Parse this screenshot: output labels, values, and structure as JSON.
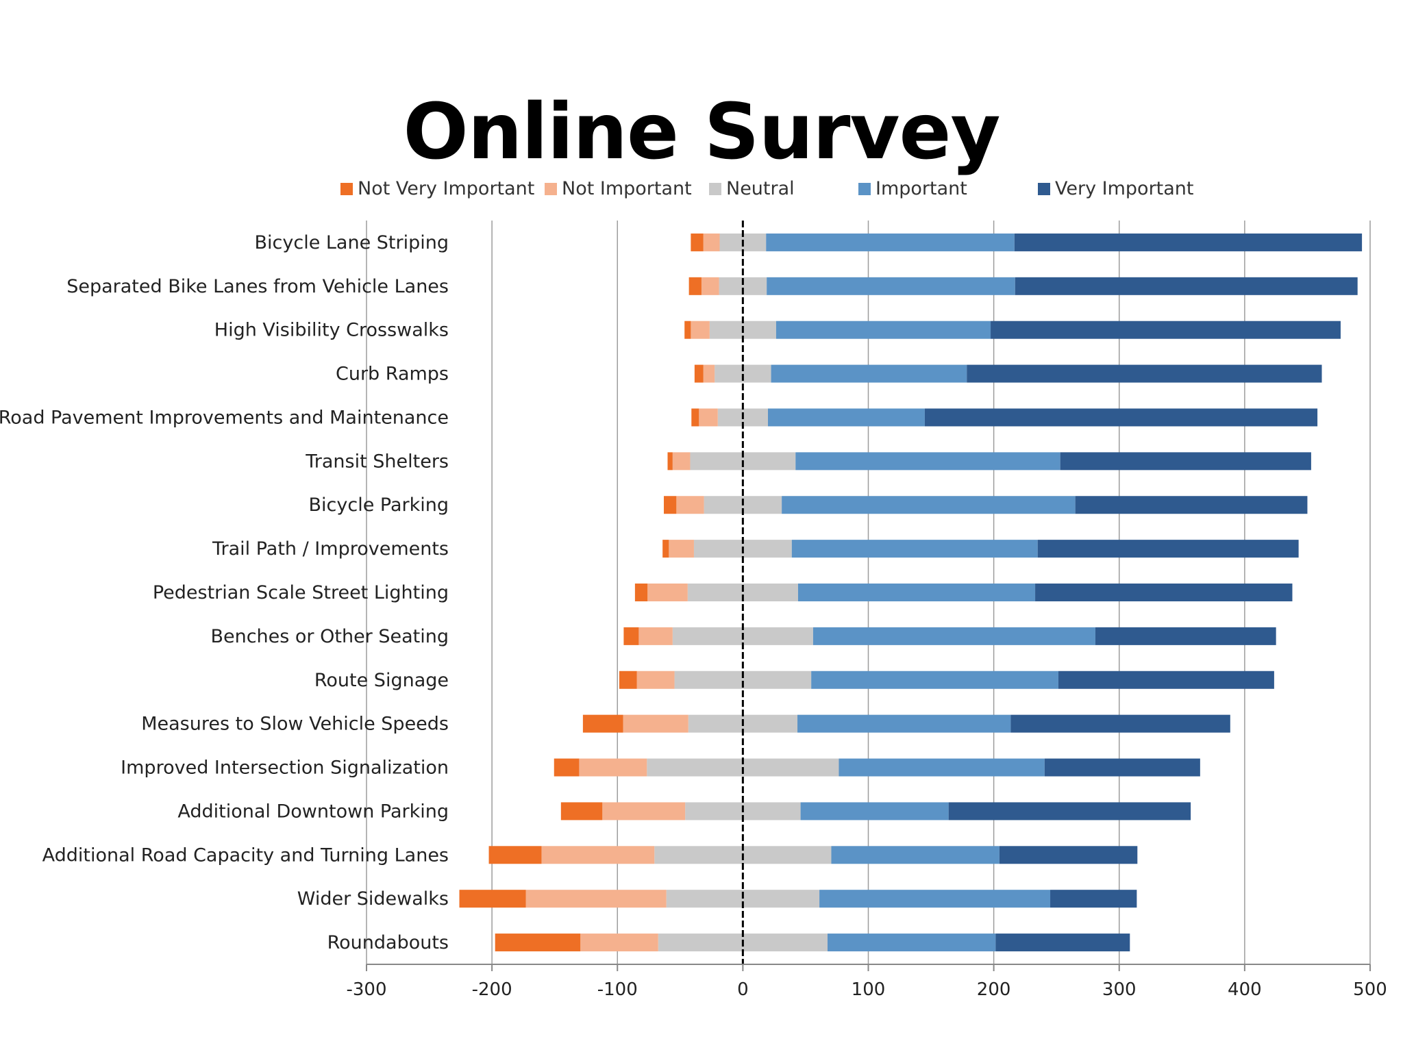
{
  "page": {
    "title": "Online Survey"
  },
  "chart_data": {
    "type": "bar",
    "orientation": "horizontal",
    "stacked": "diverging",
    "title": "",
    "xlabel": "",
    "ylabel": "",
    "xlim": [
      -300,
      500
    ],
    "xticks": [
      -300,
      -200,
      -100,
      0,
      100,
      200,
      300,
      400,
      500
    ],
    "grid": true,
    "legend_position": "top",
    "categories": [
      "Bicycle Lane Striping",
      "Separated Bike Lanes from Vehicle Lanes",
      "High Visibility Crosswalks",
      "Curb Ramps",
      "Road Pavement Improvements and Maintenance",
      "Transit Shelters",
      "Bicycle Parking",
      "Trail Path / Improvements",
      "Pedestrian Scale Street Lighting",
      "Benches or Other Seating",
      "Route Signage",
      "Measures to Slow Vehicle Speeds",
      "Improved Intersection Signalization",
      "Additional Downtown Parking",
      "Additional Road Capacity and Turning Lanes",
      "Wider Sidewalks",
      "Roundabouts"
    ],
    "series": [
      {
        "name": "Not Very Important",
        "color": "#EE6F25",
        "values": [
          10,
          10,
          5,
          7,
          6,
          4,
          10,
          5,
          10,
          12,
          14,
          32,
          20,
          33,
          42,
          53,
          68
        ]
      },
      {
        "name": "Not Important",
        "color": "#F5B18E",
        "values": [
          13,
          14,
          15,
          9,
          15,
          14,
          22,
          20,
          32,
          27,
          30,
          52,
          54,
          66,
          90,
          112,
          62
        ]
      },
      {
        "name": "Neutral",
        "color": "#C9C9C9",
        "values": [
          37,
          38,
          53,
          45,
          40,
          84,
          62,
          78,
          88,
          112,
          109,
          87,
          153,
          92,
          141,
          122,
          135
        ]
      },
      {
        "name": "Important",
        "color": "#5B93C6",
        "values": [
          198,
          198,
          171,
          156,
          125,
          211,
          234,
          196,
          189,
          225,
          197,
          170,
          164,
          118,
          134,
          184,
          134
        ]
      },
      {
        "name": "Very Important",
        "color": "#2F5A8F",
        "values": [
          277,
          273,
          279,
          283,
          313,
          200,
          185,
          208,
          205,
          144,
          172,
          175,
          124,
          193,
          110,
          69,
          107
        ]
      }
    ]
  }
}
